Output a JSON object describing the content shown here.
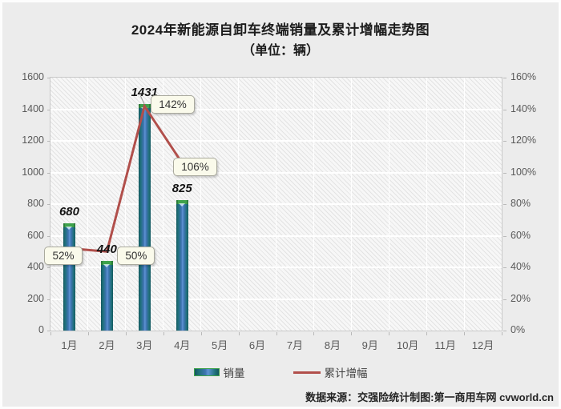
{
  "title": "2024年新能源自卸车终端销量及累计增幅走势图",
  "subtitle": "（单位：辆）",
  "source": "数据来源：交强险统计制图:第一商用车网 cvworld.cn",
  "legend": {
    "sales_label": "销量",
    "growth_label": "累计增幅"
  },
  "colors": {
    "background": "#ececec",
    "bar_teal": "#14565e",
    "bar_blue": "#5e94d4",
    "cap_green": "#3fa24c",
    "line_red": "#b14f4b",
    "callout_bg": "#fafaeb",
    "grid_white": "#ffffff",
    "axis_text": "#595959"
  },
  "chart_data": {
    "type": "bar",
    "title": "2024年新能源自卸车终端销量及累计增幅走势图",
    "subtitle": "（单位：辆）",
    "categories": [
      "1月",
      "2月",
      "3月",
      "4月",
      "5月",
      "6月",
      "7月",
      "8月",
      "9月",
      "10月",
      "11月",
      "12月"
    ],
    "series": [
      {
        "name": "销量",
        "type": "bar",
        "axis": "left",
        "values": [
          680,
          440,
          1431,
          825,
          null,
          null,
          null,
          null,
          null,
          null,
          null,
          null
        ],
        "data_labels": [
          "680",
          "440",
          "1431",
          "825"
        ]
      },
      {
        "name": "累计增幅",
        "type": "line",
        "axis": "right",
        "values_pct": [
          52,
          50,
          142,
          106,
          null,
          null,
          null,
          null,
          null,
          null,
          null,
          null
        ],
        "data_labels": [
          "52%",
          "50%",
          "142%",
          "106%"
        ]
      }
    ],
    "left_axis": {
      "min": 0,
      "max": 1600,
      "ticks": [
        "0",
        "200",
        "400",
        "600",
        "800",
        "1000",
        "1200",
        "1400",
        "1600"
      ]
    },
    "right_axis": {
      "min_pct": 0,
      "max_pct": 160,
      "ticks": [
        "0%",
        "20%",
        "40%",
        "60%",
        "80%",
        "100%",
        "120%",
        "140%",
        "160%"
      ]
    },
    "grid": true,
    "legend_position": "bottom"
  }
}
